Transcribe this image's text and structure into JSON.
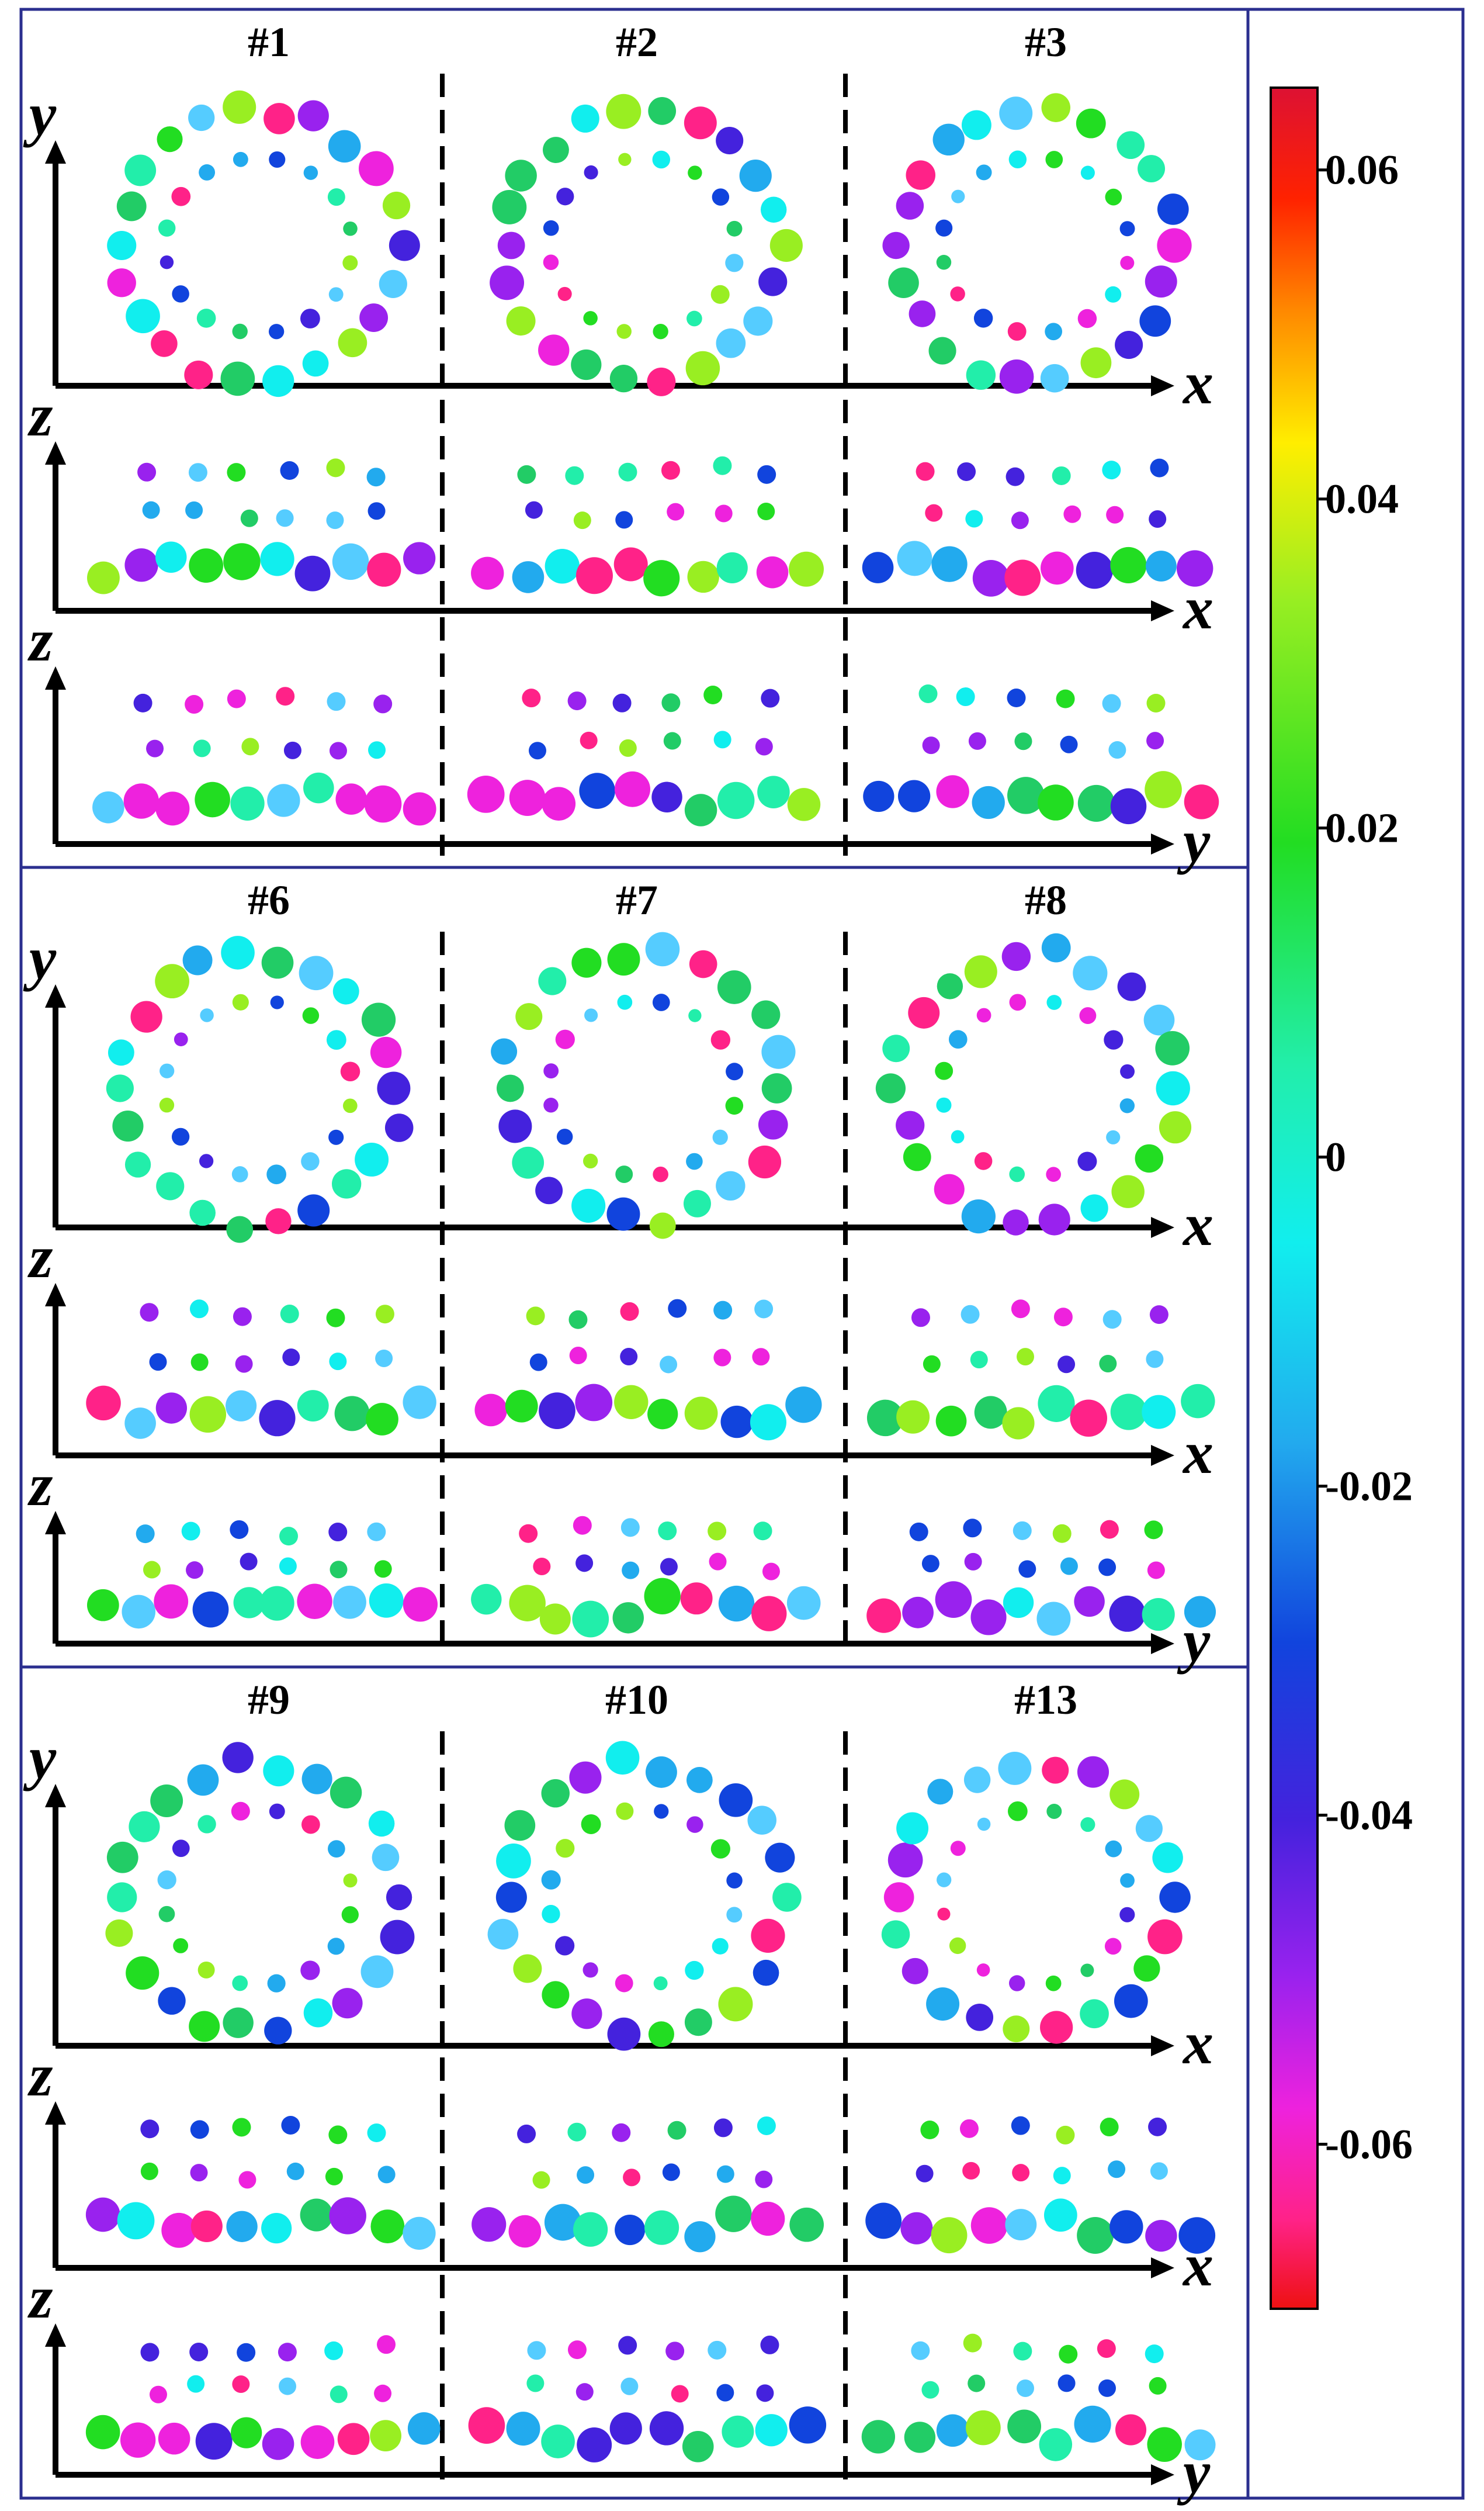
{
  "sections": [
    {
      "panels": [
        "#1",
        "#2",
        "#3"
      ]
    },
    {
      "panels": [
        "#6",
        "#7",
        "#8"
      ]
    },
    {
      "panels": [
        "#9",
        "#10",
        "#13"
      ]
    }
  ],
  "row_axes": [
    {
      "vertical": "y",
      "horizontal": "x"
    },
    {
      "vertical": "z",
      "horizontal": "x"
    },
    {
      "vertical": "z",
      "horizontal": "y"
    }
  ],
  "colorbar": {
    "min": -0.07,
    "max": 0.065,
    "ticks": [
      {
        "value": 0.06,
        "label": "0.06"
      },
      {
        "value": 0.04,
        "label": "0.04"
      },
      {
        "value": 0.02,
        "label": "0.02"
      },
      {
        "value": 0,
        "label": "0"
      },
      {
        "value": -0.02,
        "label": "-0.02"
      },
      {
        "value": -0.04,
        "label": "-0.04"
      },
      {
        "value": -0.06,
        "label": "-0.06"
      }
    ],
    "colors": [
      "#dd1133",
      "#ff2200",
      "#ff8800",
      "#ffee00",
      "#99ee22",
      "#22dd22",
      "#22eeaa",
      "#11eeee",
      "#22aaee",
      "#1144dd",
      "#4422dd",
      "#9922ee",
      "#ee22dd",
      "#ff2288",
      "#ee1111"
    ]
  },
  "frame_color": "#2b2f8f"
}
